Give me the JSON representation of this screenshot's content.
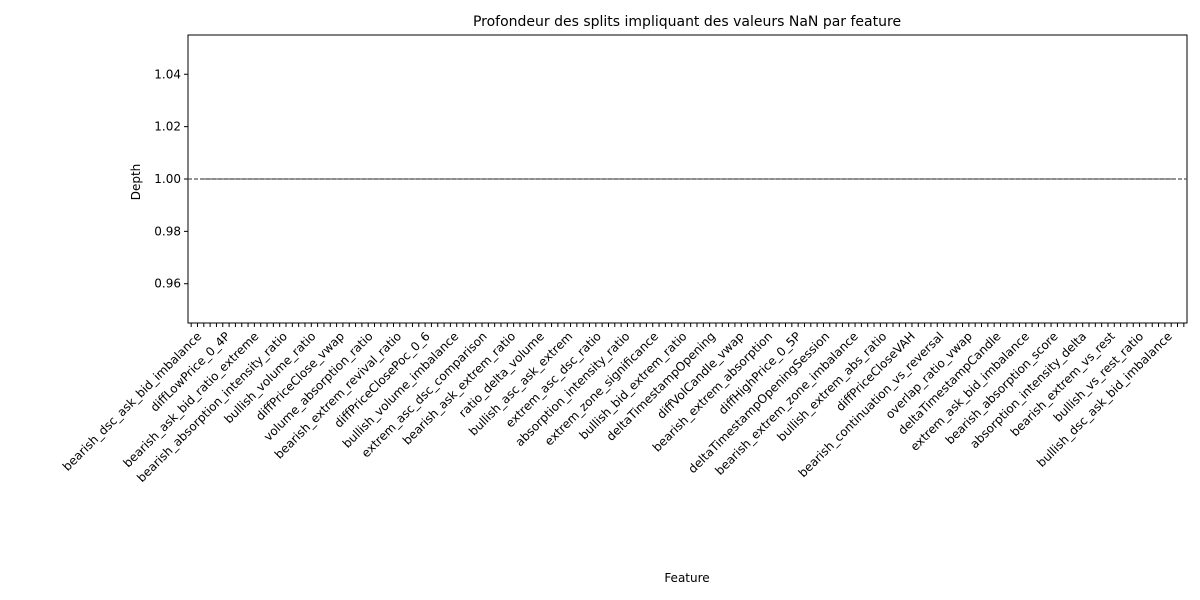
{
  "chart_data": {
    "type": "line",
    "title": "Profondeur des splits impliquant des valeurs NaN par feature",
    "xlabel": "Feature",
    "ylabel": "Depth",
    "ylim": [
      0.945,
      1.055
    ],
    "yticks": [
      0.96,
      0.98,
      1.0,
      1.02,
      1.04
    ],
    "ytick_labels": [
      "0.96",
      "0.98",
      "1.00",
      "1.02",
      "1.04"
    ],
    "grid": false,
    "legend": "none",
    "reference_line": {
      "value": 1.0,
      "style": "dashed",
      "color": "#555555"
    },
    "categories": [
      "bearish_dsc_ask_bid_imbalance",
      "diffLowPrice_0_4P",
      "bearish_ask_bid_ratio_extreme",
      "bearish_absorption_intensity_ratio",
      "bullish_volume_ratio",
      "diffPriceClose_vwap",
      "volume_absorption_ratio",
      "bearish_extrem_revival_ratio",
      "diffPriceClosePoc_0_6",
      "bullish_volume_imbalance",
      "extrem_asc_dsc_comparison",
      "bearish_ask_extrem_ratio",
      "ratio_delta_volume",
      "bullish_asc_ask_extrem",
      "extrem_asc_dsc_ratio",
      "absorption_intensity_ratio",
      "extrem_zone_significance",
      "bullish_bid_extrem_ratio",
      "deltaTimestampOpening",
      "diffVolCandle_vwap",
      "bearish_extrem_absorption",
      "diffHighPrice_0_5P",
      "deltaTimestampOpeningSession",
      "bearish_extrem_zone_imbalance",
      "bullish_extrem_abs_ratio",
      "diffPriceCloseVAH",
      "bearish_continuation_vs_reversal",
      "overlap_ratio_vwap",
      "deltaTimestampCandle",
      "extrem_ask_bid_imbalance",
      "bearish_absorption_score",
      "absorption_intensity_delta",
      "bearish_extrem_vs_rest",
      "bullish_vs_rest_ratio",
      "bullish_dsc_ask_bid_imbalance"
    ],
    "values": [
      1,
      1,
      1,
      1,
      1,
      1,
      1,
      1,
      1,
      1,
      1,
      1,
      1,
      1,
      1,
      1,
      1,
      1,
      1,
      1,
      1,
      1,
      1,
      1,
      1,
      1,
      1,
      1,
      1,
      1,
      1,
      1,
      1,
      1,
      1
    ],
    "tick_count": 158
  }
}
